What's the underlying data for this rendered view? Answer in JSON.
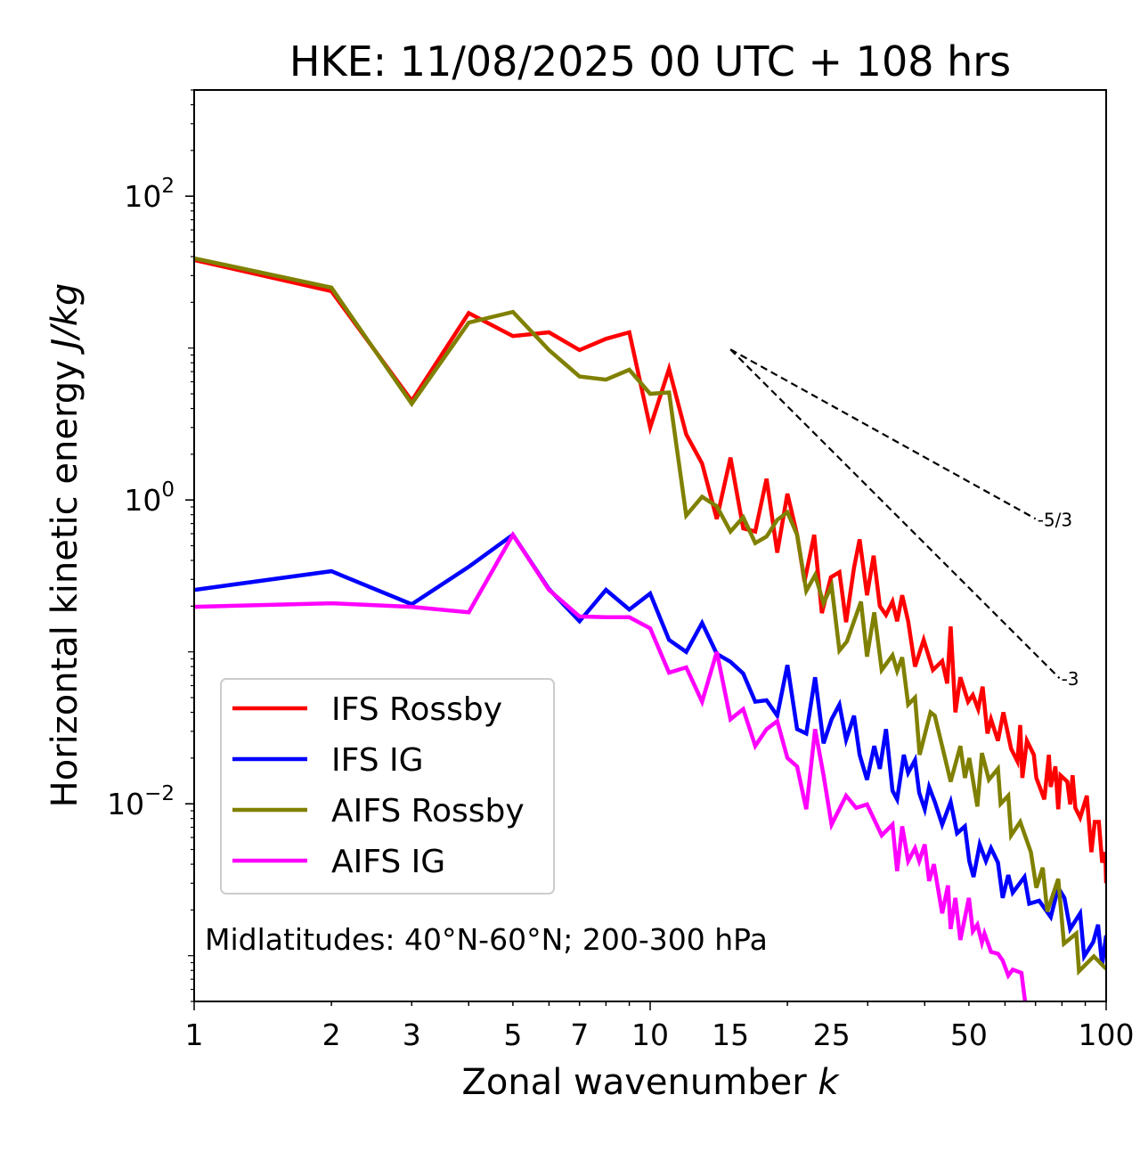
{
  "chart_data": {
    "type": "line",
    "title": "HKE: 11/08/2025 00 UTC + 108 hrs",
    "xlabel": "Zonal wavenumber",
    "xlabel_italic": "k",
    "ylabel": "Horizontal kinetic energy",
    "ylabel_italic": "J/kg",
    "xscale": "log",
    "yscale": "log",
    "xlim": [
      1,
      100
    ],
    "ylim": [
      0.0005,
      500
    ],
    "xticks": [
      1,
      2,
      3,
      5,
      7,
      10,
      15,
      25,
      50,
      100
    ],
    "xtick_labels": [
      "1",
      "2",
      "3",
      "5",
      "7",
      "10",
      "15",
      "25",
      "50",
      "100"
    ],
    "yticks": [
      {
        "value": 100,
        "base": "10",
        "exp": "2"
      },
      {
        "value": 1,
        "base": "10",
        "exp": "0"
      },
      {
        "value": 0.01,
        "base": "10",
        "exp": "−2"
      }
    ],
    "grid": false,
    "legend_position": "lower-left",
    "annotation": "Midlatitudes: 40°N-60°N; 200-300 hPa",
    "reference_lines": [
      {
        "label": "-5/3",
        "slope": -1.6667,
        "k_start": 15,
        "k_end": 70,
        "value_start": 9.8
      },
      {
        "label": "-3",
        "slope": -3,
        "k_start": 15,
        "k_end": 79,
        "value_start": 9.8
      }
    ],
    "series": [
      {
        "name": "IFS Rossby",
        "color": "#ff0000",
        "points": [
          [
            1,
            38
          ],
          [
            2,
            23.7
          ],
          [
            3,
            4.5
          ],
          [
            4,
            17
          ],
          [
            5,
            12
          ],
          [
            6,
            12.7
          ],
          [
            7,
            9.7
          ],
          [
            8,
            11.5
          ],
          [
            9,
            12.7
          ],
          [
            10,
            3.0
          ],
          [
            11,
            7.3
          ],
          [
            12,
            2.7
          ],
          [
            13,
            1.74
          ],
          [
            14,
            0.75
          ],
          [
            15,
            1.9
          ],
          [
            16,
            0.65
          ],
          [
            17,
            0.62
          ],
          [
            18,
            1.38
          ],
          [
            19,
            0.45
          ],
          [
            20,
            1.1
          ],
          [
            21,
            0.59
          ],
          [
            21.8,
            0.29
          ],
          [
            22.9,
            0.59
          ],
          [
            23.8,
            0.18
          ],
          [
            24.9,
            0.31
          ],
          [
            26,
            0.335
          ],
          [
            26.9,
            0.157
          ],
          [
            28,
            0.358
          ],
          [
            28.8,
            0.55
          ],
          [
            29.9,
            0.236
          ],
          [
            30.9,
            0.43
          ],
          [
            31.9,
            0.2
          ],
          [
            32.9,
            0.175
          ],
          [
            34,
            0.214
          ],
          [
            34.8,
            0.159
          ],
          [
            35.7,
            0.236
          ],
          [
            36.8,
            0.159
          ],
          [
            38.1,
            0.08
          ],
          [
            39.8,
            0.12
          ],
          [
            41.7,
            0.076
          ],
          [
            43.7,
            0.087
          ],
          [
            44.8,
            0.062
          ],
          [
            45.6,
            0.147
          ],
          [
            46.7,
            0.04
          ],
          [
            47.9,
            0.068
          ],
          [
            49.8,
            0.047
          ],
          [
            51,
            0.052
          ],
          [
            52.4,
            0.042
          ],
          [
            53.6,
            0.059
          ],
          [
            54.9,
            0.029
          ],
          [
            55.9,
            0.036
          ],
          [
            57.9,
            0.026
          ],
          [
            59.5,
            0.04
          ],
          [
            61.9,
            0.023
          ],
          [
            63.9,
            0.019
          ],
          [
            64.8,
            0.033
          ],
          [
            65.5,
            0.0148
          ],
          [
            67,
            0.026
          ],
          [
            69.4,
            0.021
          ],
          [
            70.3,
            0.0148
          ],
          [
            73.2,
            0.0107
          ],
          [
            74.9,
            0.021
          ],
          [
            75.6,
            0.0129
          ],
          [
            77.4,
            0.0176
          ],
          [
            78.5,
            0.0092
          ],
          [
            79.4,
            0.0154
          ],
          [
            82.2,
            0.014
          ],
          [
            83.4,
            0.0099
          ],
          [
            84.4,
            0.0154
          ],
          [
            85.6,
            0.0094
          ],
          [
            87.7,
            0.0081
          ],
          [
            90.7,
            0.0113
          ],
          [
            92.8,
            0.0048
          ],
          [
            94.4,
            0.0076
          ],
          [
            96.4,
            0.0076
          ],
          [
            98,
            0.0041
          ],
          [
            99.6,
            0.0048
          ],
          [
            100,
            0.003
          ]
        ]
      },
      {
        "name": "IFS IG",
        "color": "#0000ff",
        "points": [
          [
            1,
            0.256
          ],
          [
            2,
            0.34
          ],
          [
            3,
            0.206
          ],
          [
            4,
            0.363
          ],
          [
            5,
            0.59
          ],
          [
            6,
            0.259
          ],
          [
            7,
            0.159
          ],
          [
            8,
            0.256
          ],
          [
            9,
            0.19
          ],
          [
            10,
            0.242
          ],
          [
            11,
            0.12
          ],
          [
            12,
            0.1
          ],
          [
            13,
            0.155
          ],
          [
            14,
            0.097
          ],
          [
            15,
            0.086
          ],
          [
            16,
            0.072
          ],
          [
            17,
            0.047
          ],
          [
            18,
            0.048
          ],
          [
            19,
            0.038
          ],
          [
            20,
            0.082
          ],
          [
            21,
            0.031
          ],
          [
            22,
            0.029
          ],
          [
            23,
            0.068
          ],
          [
            24,
            0.025
          ],
          [
            25,
            0.036
          ],
          [
            26,
            0.045
          ],
          [
            26.9,
            0.0264
          ],
          [
            28,
            0.038
          ],
          [
            28.8,
            0.021
          ],
          [
            29.9,
            0.0144
          ],
          [
            31,
            0.024
          ],
          [
            31.9,
            0.017
          ],
          [
            32.9,
            0.031
          ],
          [
            34,
            0.0122
          ],
          [
            34.8,
            0.0107
          ],
          [
            36,
            0.021
          ],
          [
            36.8,
            0.016
          ],
          [
            38.1,
            0.0194
          ],
          [
            38.9,
            0.0118
          ],
          [
            40,
            0.0092
          ],
          [
            40.9,
            0.0129
          ],
          [
            42.1,
            0.0103
          ],
          [
            43.7,
            0.0073
          ],
          [
            45.6,
            0.0103
          ],
          [
            47.1,
            0.0064
          ],
          [
            49,
            0.0071
          ],
          [
            50.1,
            0.0042
          ],
          [
            51.2,
            0.0033
          ],
          [
            52.8,
            0.0054
          ],
          [
            54.5,
            0.0042
          ],
          [
            55.9,
            0.0051
          ],
          [
            57.9,
            0.0041
          ],
          [
            59.3,
            0.0024
          ],
          [
            61,
            0.0034
          ],
          [
            62.4,
            0.0026
          ],
          [
            66.2,
            0.0033
          ],
          [
            67.8,
            0.0022
          ],
          [
            71.3,
            0.0023
          ],
          [
            75.6,
            0.0018
          ],
          [
            78.5,
            0.0028
          ],
          [
            81,
            0.0024
          ],
          [
            83.4,
            0.0015
          ],
          [
            87.7,
            0.0019
          ],
          [
            89.5,
            0.00099
          ],
          [
            93.7,
            0.00123
          ],
          [
            96,
            0.0016
          ],
          [
            98,
            0.00087
          ],
          [
            100,
            0.00136
          ]
        ]
      },
      {
        "name": "AIFS Rossby",
        "color": "#808000",
        "points": [
          [
            1,
            39
          ],
          [
            2,
            25
          ],
          [
            3,
            4.3
          ],
          [
            4,
            14.7
          ],
          [
            5,
            17.3
          ],
          [
            6,
            9.7
          ],
          [
            7,
            6.5
          ],
          [
            8,
            6.2
          ],
          [
            9,
            7.2
          ],
          [
            10,
            5.0
          ],
          [
            11,
            5.1
          ],
          [
            12,
            0.79
          ],
          [
            13,
            1.05
          ],
          [
            14,
            0.91
          ],
          [
            15,
            0.62
          ],
          [
            16,
            0.77
          ],
          [
            17,
            0.52
          ],
          [
            18,
            0.575
          ],
          [
            19,
            0.74
          ],
          [
            20,
            0.83
          ],
          [
            21,
            0.59
          ],
          [
            22,
            0.252
          ],
          [
            23,
            0.32
          ],
          [
            24,
            0.209
          ],
          [
            25,
            0.273
          ],
          [
            26,
            0.102
          ],
          [
            27,
            0.117
          ],
          [
            29,
            0.214
          ],
          [
            29.9,
            0.093
          ],
          [
            31,
            0.182
          ],
          [
            32.2,
            0.076
          ],
          [
            34,
            0.095
          ],
          [
            34.8,
            0.075
          ],
          [
            35.7,
            0.092
          ],
          [
            36.8,
            0.045
          ],
          [
            38.1,
            0.05
          ],
          [
            39,
            0.021
          ],
          [
            41.2,
            0.04
          ],
          [
            42.1,
            0.038
          ],
          [
            44,
            0.022
          ],
          [
            45.6,
            0.014
          ],
          [
            47.9,
            0.024
          ],
          [
            49,
            0.0148
          ],
          [
            50.1,
            0.02
          ],
          [
            52.2,
            0.0096
          ],
          [
            53.4,
            0.0216
          ],
          [
            55.3,
            0.0144
          ],
          [
            57.9,
            0.017
          ],
          [
            58.7,
            0.01
          ],
          [
            61,
            0.0113
          ],
          [
            61.9,
            0.0062
          ],
          [
            64.8,
            0.0076
          ],
          [
            68.4,
            0.0048
          ],
          [
            70.3,
            0.0028
          ],
          [
            72.6,
            0.0038
          ],
          [
            74.3,
            0.00195
          ],
          [
            78.5,
            0.0032
          ],
          [
            80.8,
            0.0012
          ],
          [
            86,
            0.0014
          ],
          [
            87.2,
            0.00079
          ],
          [
            94,
            0.00099
          ],
          [
            100,
            0.00082
          ]
        ]
      },
      {
        "name": "AIFS IG",
        "color": "#ff00ff",
        "points": [
          [
            1,
            0.198
          ],
          [
            2,
            0.209
          ],
          [
            3,
            0.198
          ],
          [
            4,
            0.182
          ],
          [
            5,
            0.59
          ],
          [
            6,
            0.256
          ],
          [
            7,
            0.171
          ],
          [
            8,
            0.169
          ],
          [
            9,
            0.169
          ],
          [
            10,
            0.143
          ],
          [
            11,
            0.073
          ],
          [
            12,
            0.079
          ],
          [
            13,
            0.047
          ],
          [
            14,
            0.1
          ],
          [
            15,
            0.036
          ],
          [
            16,
            0.042
          ],
          [
            17,
            0.024
          ],
          [
            18,
            0.031
          ],
          [
            19,
            0.035
          ],
          [
            20,
            0.02
          ],
          [
            21,
            0.0176
          ],
          [
            22,
            0.0092
          ],
          [
            23,
            0.031
          ],
          [
            24,
            0.0154
          ],
          [
            25,
            0.0073
          ],
          [
            26.9,
            0.0113
          ],
          [
            28.3,
            0.0094
          ],
          [
            29.9,
            0.0099
          ],
          [
            32.2,
            0.0062
          ],
          [
            34,
            0.0073
          ],
          [
            34.8,
            0.0036
          ],
          [
            35.7,
            0.0071
          ],
          [
            36.8,
            0.0042
          ],
          [
            38.1,
            0.0051
          ],
          [
            38.9,
            0.0042
          ],
          [
            40,
            0.0054
          ],
          [
            40.9,
            0.0031
          ],
          [
            41.9,
            0.004
          ],
          [
            43.7,
            0.0019
          ],
          [
            45,
            0.0029
          ],
          [
            45.6,
            0.0015
          ],
          [
            46.7,
            0.0024
          ],
          [
            47.9,
            0.00127
          ],
          [
            50,
            0.0024
          ],
          [
            51,
            0.00145
          ],
          [
            52.2,
            0.0016
          ],
          [
            53.4,
            0.00122
          ],
          [
            54.1,
            0.0014
          ],
          [
            55.9,
            0.00106
          ],
          [
            57.9,
            0.00103
          ],
          [
            59.3,
            0.00093
          ],
          [
            61,
            0.00074
          ],
          [
            62.4,
            0.00081
          ],
          [
            65.2,
            0.00077
          ],
          [
            67,
            0.0004
          ]
        ]
      }
    ]
  }
}
